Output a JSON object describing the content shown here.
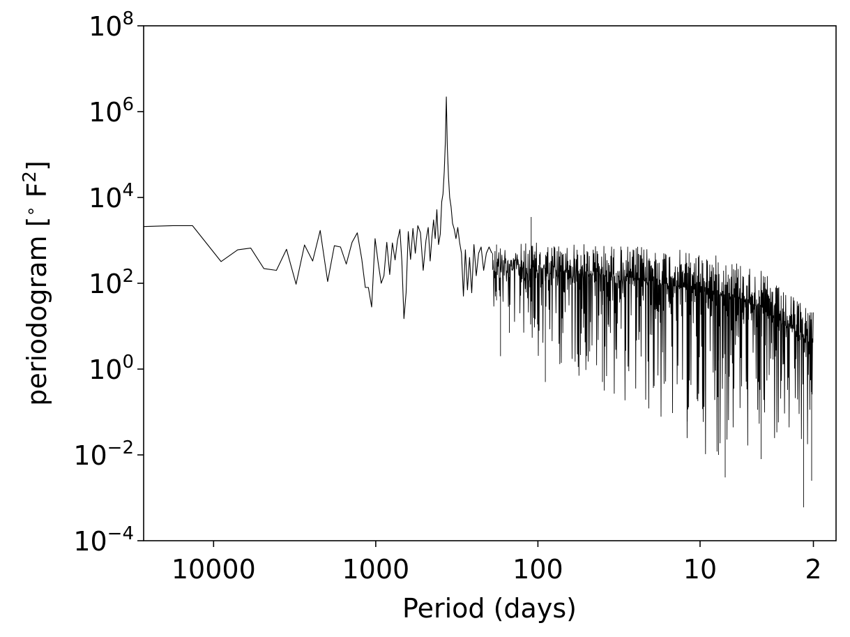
{
  "chart_data": {
    "type": "line",
    "title": "",
    "xlabel": "Period (days)",
    "ylabel_main": "periodogram [",
    "ylabel_sup": "∘",
    "ylabel_unit": " F",
    "ylabel_exp": "2",
    "ylabel_close": "]",
    "x_scale": "log",
    "x_reversed": true,
    "y_scale": "log",
    "xlim": [
      27000,
      1.45
    ],
    "ylim": [
      0.0001,
      100000000
    ],
    "x_ticks": [
      {
        "value": 10000,
        "label": "10000"
      },
      {
        "value": 1000,
        "label": "1000"
      },
      {
        "value": 100,
        "label": "100"
      },
      {
        "value": 10,
        "label": "10"
      },
      {
        "value": 2,
        "label": "2"
      }
    ],
    "y_ticks": [
      {
        "value": 0.0001,
        "base": "10",
        "exp": "−4"
      },
      {
        "value": 0.01,
        "base": "10",
        "exp": "−2"
      },
      {
        "value": 1,
        "base": "10",
        "exp": "0"
      },
      {
        "value": 100,
        "base": "10",
        "exp": "2"
      },
      {
        "value": 10000,
        "base": "10",
        "exp": "4"
      },
      {
        "value": 1000000,
        "base": "10",
        "exp": "6"
      },
      {
        "value": 100000000,
        "base": "10",
        "exp": "8"
      }
    ],
    "series": [
      {
        "line_color": "#000000",
        "points": [
          [
            27000,
            2100
          ],
          [
            17800,
            2200
          ],
          [
            13500,
            2200
          ],
          [
            9000,
            320
          ],
          [
            7100,
            600
          ],
          [
            5900,
            660
          ],
          [
            4900,
            220
          ],
          [
            4100,
            200
          ],
          [
            3550,
            620
          ],
          [
            3100,
            95
          ],
          [
            2750,
            780
          ],
          [
            2450,
            330
          ],
          [
            2200,
            1700
          ],
          [
            1980,
            110
          ],
          [
            1800,
            750
          ],
          [
            1650,
            700
          ],
          [
            1520,
            280
          ],
          [
            1400,
            900
          ],
          [
            1300,
            1500
          ],
          [
            1220,
            370
          ],
          [
            1160,
            80
          ],
          [
            1110,
            80
          ],
          [
            1060,
            28
          ],
          [
            1010,
            1100
          ],
          [
            965,
            290
          ],
          [
            925,
            100
          ],
          [
            890,
            150
          ],
          [
            855,
            900
          ],
          [
            820,
            160
          ],
          [
            790,
            870
          ],
          [
            760,
            350
          ],
          [
            735,
            1000
          ],
          [
            710,
            1800
          ],
          [
            690,
            330
          ],
          [
            670,
            15
          ],
          [
            650,
            60
          ],
          [
            630,
            1600
          ],
          [
            610,
            360
          ],
          [
            590,
            1900
          ],
          [
            570,
            500
          ],
          [
            550,
            2200
          ],
          [
            530,
            1500
          ],
          [
            510,
            200
          ],
          [
            490,
            1000
          ],
          [
            475,
            2000
          ],
          [
            462,
            330
          ],
          [
            450,
            1200
          ],
          [
            440,
            3000
          ],
          [
            430,
            1100
          ],
          [
            420,
            5200
          ],
          [
            410,
            800
          ],
          [
            400,
            1400
          ],
          [
            392,
            8000
          ],
          [
            385,
            12000
          ],
          [
            378,
            40000
          ],
          [
            372,
            200000
          ],
          [
            367,
            2200000
          ],
          [
            362,
            150000
          ],
          [
            356,
            30000
          ],
          [
            350,
            10000
          ],
          [
            343,
            6000
          ],
          [
            336,
            2500
          ],
          [
            328,
            1800
          ],
          [
            320,
            1100
          ],
          [
            312,
            2000
          ],
          [
            304,
            900
          ],
          [
            296,
            500
          ],
          [
            288,
            50
          ],
          [
            280,
            600
          ],
          [
            272,
            70
          ],
          [
            264,
            400
          ],
          [
            256,
            60
          ],
          [
            248,
            800
          ],
          [
            240,
            150
          ],
          [
            232,
            500
          ],
          [
            224,
            700
          ],
          [
            216,
            200
          ],
          [
            208,
            500
          ],
          [
            200,
            700
          ],
          [
            192,
            500
          ]
        ],
        "noise_band": [
          {
            "x": 190,
            "hi": 800,
            "lo": 30
          },
          {
            "x": 100,
            "hi": 900,
            "lo": 2
          },
          {
            "x": 50,
            "hi": 850,
            "lo": 0.5
          },
          {
            "x": 20,
            "hi": 700,
            "lo": 0.06
          },
          {
            "x": 10,
            "hi": 550,
            "lo": 0.01
          },
          {
            "x": 6,
            "hi": 350,
            "lo": 0.01
          },
          {
            "x": 4,
            "hi": 180,
            "lo": 0.008
          },
          {
            "x": 3,
            "hi": 60,
            "lo": 0.01
          },
          {
            "x": 2.4,
            "hi": 40,
            "lo": 0.005
          },
          {
            "x": 2,
            "hi": 30,
            "lo": 0.003
          }
        ],
        "notable_dips": [
          [
            170,
            2
          ],
          [
            150,
            7
          ],
          [
            90,
            0.5
          ],
          [
            40,
            0.5
          ],
          [
            12,
            0.06
          ],
          [
            7.7,
            0.01
          ],
          [
            7,
            0.003
          ],
          [
            4.2,
            0.008
          ],
          [
            2.3,
            0.0006
          ],
          [
            2.05,
            0.0025
          ]
        ],
        "notable_spikes": [
          [
            180,
            800
          ],
          [
            110,
            3500
          ]
        ]
      }
    ],
    "grid": false,
    "legend": "none"
  }
}
